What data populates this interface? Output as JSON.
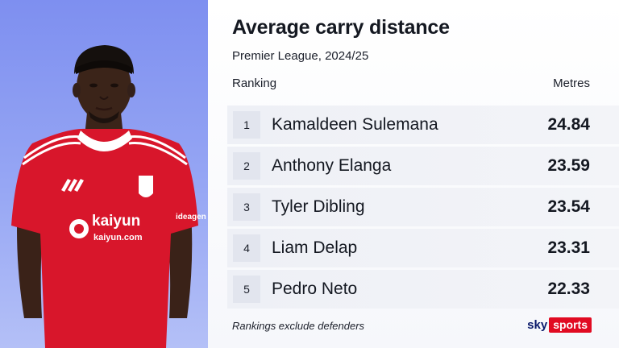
{
  "header": {
    "title": "Average carry distance",
    "subtitle": "Premier League, 2024/25"
  },
  "columns": {
    "ranking": "Ranking",
    "metres": "Metres"
  },
  "rows": [
    {
      "rank": "1",
      "name": "Kamaldeen Sulemana",
      "value": "24.84"
    },
    {
      "rank": "2",
      "name": "Anthony Elanga",
      "value": "23.59"
    },
    {
      "rank": "3",
      "name": "Tyler Dibling",
      "value": "23.54"
    },
    {
      "rank": "4",
      "name": "Liam Delap",
      "value": "23.31"
    },
    {
      "rank": "5",
      "name": "Pedro Neto",
      "value": "22.33"
    }
  ],
  "footnote": "Rankings exclude defenders",
  "brand": {
    "sky": "sky",
    "sports": "sports"
  },
  "shirt": {
    "sponsor_name": "kaiyun",
    "sponsor_url": "kaiyun.com",
    "sleeve_sponsor": "ideagen"
  },
  "colors": {
    "panel_blue": "#8c9cf2",
    "shirt_red": "#d8162b",
    "sky_red": "#e10b22"
  }
}
